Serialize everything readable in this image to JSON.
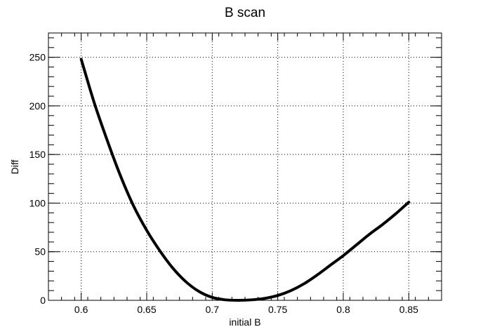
{
  "chart_data": {
    "type": "line",
    "title": "B scan",
    "xlabel": "initial B",
    "ylabel": "Diff",
    "xlim": [
      0.575,
      0.875
    ],
    "ylim": [
      0,
      275
    ],
    "x_ticks": [
      0.6,
      0.65,
      0.7,
      0.75,
      0.8,
      0.85
    ],
    "x_tick_labels": [
      "0.6",
      "0.65",
      "0.7",
      "0.75",
      "0.8",
      "0.85"
    ],
    "y_ticks": [
      0,
      50,
      100,
      150,
      200,
      250
    ],
    "y_tick_labels": [
      "0",
      "50",
      "100",
      "150",
      "200",
      "250"
    ],
    "grid": true,
    "series": [
      {
        "x": [
          0.6,
          0.61,
          0.62,
          0.63,
          0.64,
          0.65,
          0.66,
          0.67,
          0.68,
          0.69,
          0.7,
          0.71,
          0.72,
          0.73,
          0.74,
          0.75,
          0.76,
          0.77,
          0.78,
          0.79,
          0.8,
          0.81,
          0.82,
          0.83,
          0.84,
          0.85
        ],
        "y": [
          248,
          203,
          164,
          128,
          97,
          72,
          51,
          33,
          19,
          9,
          3,
          0.5,
          0,
          0.5,
          2,
          5,
          10,
          17,
          26,
          36,
          46,
          57,
          68,
          78,
          89,
          101
        ],
        "color": "#000000"
      }
    ]
  }
}
